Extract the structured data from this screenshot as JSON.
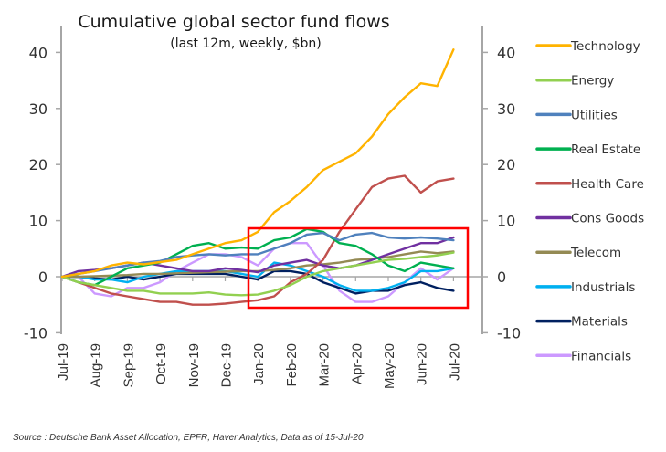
{
  "chart_data": {
    "type": "line",
    "title": "Cumulative global sector fund flows",
    "subtitle": "(last 12m, weekly, $bn)",
    "xlabel": "",
    "ylabel": "",
    "ylim": [
      -10,
      45
    ],
    "yticks": [
      -10,
      0,
      10,
      20,
      30,
      40
    ],
    "ytick_labels": [
      "-10",
      "0",
      "10",
      "20",
      "30",
      "40"
    ],
    "x_tick_labels": [
      "Jul-19",
      "Aug-19",
      "Sep-19",
      "Oct-19",
      "Nov-19",
      "Dec-19",
      "Jan-20",
      "Feb-20",
      "Mar-20",
      "Apr-20",
      "May-20",
      "Jun-20",
      "Jul-20"
    ],
    "x_months": [
      0,
      0.5,
      1,
      1.5,
      2,
      2.5,
      3,
      3.5,
      4,
      4.5,
      5,
      5.5,
      6,
      6.5,
      7,
      7.5,
      8,
      8.5,
      9,
      9.5,
      10,
      10.5,
      11,
      11.5,
      12
    ],
    "grid": false,
    "secondary_y_axis": true,
    "legend_position": "right",
    "series": [
      {
        "name": "Technology",
        "color": "#FFB300",
        "values": [
          0,
          0.5,
          1,
          2,
          2.5,
          2.2,
          2.6,
          3,
          4,
          5,
          6,
          6.5,
          8,
          11.5,
          13.5,
          16,
          19,
          20.5,
          22,
          25,
          29,
          32,
          34.5,
          34,
          40.5
        ]
      },
      {
        "name": "Energy",
        "color": "#92D050",
        "values": [
          0,
          -1,
          -1.5,
          -2,
          -2.5,
          -2.5,
          -3,
          -3,
          -3,
          -2.8,
          -3.2,
          -3.3,
          -3.2,
          -2.5,
          -1.5,
          0,
          1,
          1.5,
          2,
          2.5,
          3,
          3.2,
          3.5,
          3.8,
          4.3
        ]
      },
      {
        "name": "Utilities",
        "color": "#4F81BD",
        "values": [
          0,
          0.5,
          1,
          1.5,
          2,
          2.5,
          2.8,
          3.5,
          3.8,
          4,
          3.8,
          4,
          4,
          5,
          6,
          7.5,
          7.8,
          6.5,
          7.5,
          7.8,
          7,
          6.8,
          7,
          6.8,
          6.5
        ]
      },
      {
        "name": "Real Estate",
        "color": "#00B050",
        "values": [
          0,
          -1,
          -1.5,
          0,
          1.5,
          2,
          2.5,
          4,
          5.5,
          6,
          5,
          5.2,
          5,
          6.5,
          7,
          8.5,
          8,
          6,
          5.5,
          4,
          2,
          1,
          2.5,
          2,
          1.5
        ]
      },
      {
        "name": "Health Care",
        "color": "#C0504D",
        "values": [
          0,
          -1,
          -2,
          -3,
          -3.5,
          -4,
          -4.5,
          -4.5,
          -5,
          -5,
          -4.8,
          -4.5,
          -4.2,
          -3.5,
          -1,
          0.5,
          3,
          8,
          12,
          16,
          17.5,
          18,
          15,
          17,
          17.5
        ]
      },
      {
        "name": "Cons Goods",
        "color": "#7030A0",
        "values": [
          0,
          1,
          1.2,
          1.5,
          2,
          2.5,
          2,
          1.5,
          1,
          1,
          1.5,
          1.2,
          0.8,
          2,
          2.5,
          3,
          2,
          1.5,
          2,
          3,
          4,
          5,
          6,
          6,
          7
        ]
      },
      {
        "name": "Telecom",
        "color": "#948A54",
        "values": [
          0,
          0,
          0.1,
          0.2,
          0.3,
          0.5,
          0.5,
          0.6,
          0.7,
          0.8,
          0.9,
          1,
          1,
          1.2,
          1.5,
          2,
          2.2,
          2.5,
          3,
          3.2,
          3.5,
          4,
          4.5,
          4.2,
          4.5
        ]
      },
      {
        "name": "Industrials",
        "color": "#00B0F0",
        "values": [
          0,
          0,
          -0.5,
          -0.5,
          -1,
          0,
          0.5,
          1,
          1,
          1,
          1,
          0.5,
          0,
          2.5,
          2,
          1,
          0,
          -1.5,
          -2.5,
          -2.5,
          -2,
          -1,
          1,
          1,
          1.5
        ]
      },
      {
        "name": "Materials",
        "color": "#002060",
        "values": [
          0,
          0,
          -0.3,
          -0.5,
          0,
          -0.5,
          0,
          0.5,
          0.5,
          0.5,
          0.5,
          0,
          -0.5,
          1,
          1,
          0.5,
          -1,
          -2,
          -3,
          -2.5,
          -2.5,
          -1.5,
          -1,
          -2,
          -2.5
        ]
      },
      {
        "name": "Financials",
        "color": "#CC99FF",
        "values": [
          0,
          0,
          -3,
          -3.5,
          -2,
          -2,
          -1,
          1,
          2.5,
          4,
          4,
          3.5,
          2,
          5,
          6,
          6,
          2,
          -2.5,
          -4.5,
          -4.5,
          -3.5,
          -1,
          1.5,
          -0.5,
          1.5
        ]
      }
    ],
    "annotations": [
      {
        "type": "highlight-rectangle",
        "color": "#FF0000",
        "x_range_months": [
          6.0,
          12.4
        ],
        "y_range": [
          -5.5,
          8.7
        ]
      }
    ]
  },
  "source_text": "Source : Deutsche Bank Asset Allocation, EPFR, Haver Analytics, Data as of 15-Jul-20"
}
